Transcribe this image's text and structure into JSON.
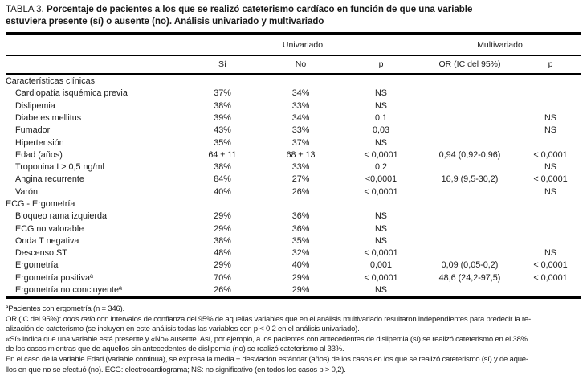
{
  "title": {
    "label": "TABLA 3. ",
    "line1": "Porcentaje de pacientes a los que se realizó cateterismo cardíaco en función de que una variable",
    "line2": "estuviera presente (sí) o ausente (no). Análisis univariado y multivariado"
  },
  "table": {
    "group_headers": {
      "univariado": "Univariado",
      "multivariado": "Multivariado"
    },
    "col_headers": {
      "si": "Sí",
      "no": "No",
      "p": "p",
      "or": "OR (IC del 95%)",
      "p2": "p"
    },
    "sections": [
      {
        "name": "Características clínicas",
        "rows": [
          {
            "label": "Cardiopatía isquémica previa",
            "si": "37%",
            "no": "34%",
            "p": "NS",
            "or": "",
            "p2": ""
          },
          {
            "label": "Dislipemia",
            "si": "38%",
            "no": "33%",
            "p": "NS",
            "or": "",
            "p2": ""
          },
          {
            "label": "Diabetes mellitus",
            "si": "39%",
            "no": "34%",
            "p": "0,1",
            "or": "",
            "p2": "NS"
          },
          {
            "label": "Fumador",
            "si": "43%",
            "no": "33%",
            "p": "0,03",
            "or": "",
            "p2": "NS"
          },
          {
            "label": "Hipertensión",
            "si": "35%",
            "no": "37%",
            "p": "NS",
            "or": "",
            "p2": ""
          },
          {
            "label": "Edad (años)",
            "si": "64 ± 11",
            "no": "68 ± 13",
            "p": "< 0,0001",
            "or": "0,94 (0,92-0,96)",
            "p2": "< 0,0001"
          },
          {
            "label": "Troponina I > 0,5 ng/ml",
            "si": "38%",
            "no": "33%",
            "p": "0,2",
            "or": "",
            "p2": "NS"
          },
          {
            "label": "Angina recurrente",
            "si": "84%",
            "no": "27%",
            "p": "<0,0001",
            "or": "16,9 (9,5-30,2)",
            "p2": "< 0,0001"
          },
          {
            "label": "Varón",
            "si": "40%",
            "no": "26%",
            "p": "< 0,0001",
            "or": "",
            "p2": "NS"
          }
        ]
      },
      {
        "name": "ECG - Ergometría",
        "rows": [
          {
            "label": "Bloqueo rama izquierda",
            "si": "29%",
            "no": "36%",
            "p": "NS",
            "or": "",
            "p2": ""
          },
          {
            "label": "ECG no valorable",
            "si": "29%",
            "no": "36%",
            "p": "NS",
            "or": "",
            "p2": ""
          },
          {
            "label": "Onda T negativa",
            "si": "38%",
            "no": "35%",
            "p": "NS",
            "or": "",
            "p2": ""
          },
          {
            "label": "Descenso ST",
            "si": "48%",
            "no": "32%",
            "p": "< 0,0001",
            "or": "",
            "p2": "NS"
          },
          {
            "label": "Ergometría",
            "si": "29%",
            "no": "40%",
            "p": "0,001",
            "or": "0,09 (0,05-0,2)",
            "p2": "< 0,0001"
          },
          {
            "label": "Ergometría positivaª",
            "si": "70%",
            "no": "29%",
            "p": "< 0,0001",
            "or": "48,6 (24,2-97,5)",
            "p2": "< 0,0001"
          },
          {
            "label": "Ergometría no concluyenteª",
            "si": "26%",
            "no": "29%",
            "p": "NS",
            "or": "",
            "p2": ""
          }
        ]
      }
    ]
  },
  "footnotes": {
    "line1": "ªPacientes con ergometría (n = 346).",
    "line2_pre": "OR (IC del 95%): ",
    "line2_italic": "odds ratio",
    "line2_post": " con intervalos de confianza del 95% de aquellas variables que en el análisis multivariado resultaron independientes para predecir la re-",
    "line3": "alización de cateterismo (se incluyen en este análisis todas las variables con p < 0,2 en el análisis univariado).",
    "line4": "«Sí» indica que una variable está presente y «No» ausente. Así, por ejemplo, a los pacientes con antecedentes de dislipemia (sí) se realizó cateterismo en el 38%",
    "line5": "de los casos mientras que de aquellos sin antecedentes de dislipemia (no) se realizó cateterismo al 33%.",
    "line6": "En el caso de la variable Edad (variable continua), se expresa la media ± desviación estándar (años) de los casos en los que se realizó cateterismo (sí) y de aque-",
    "line7": "llos en que no se efectuó (no). ECG: electrocardiograma; NS: no significativo (en todos los casos p > 0,2)."
  }
}
